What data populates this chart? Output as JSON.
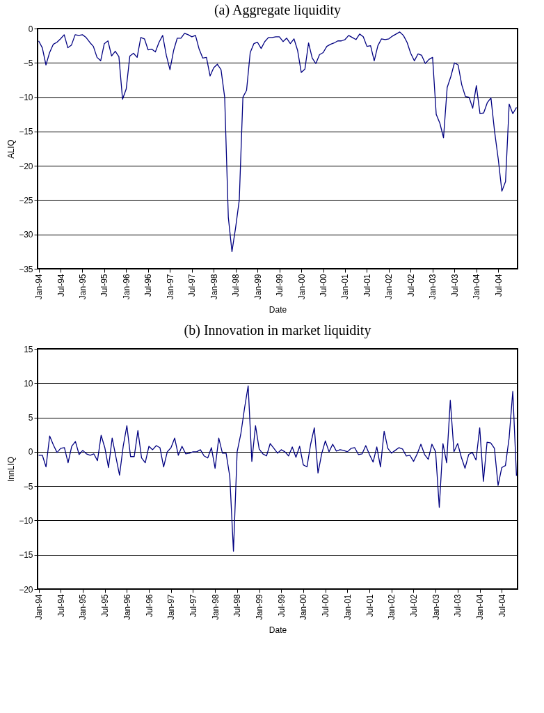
{
  "chart_data": [
    {
      "type": "line",
      "title": "(a) Aggregate liquidity",
      "xlabel": "Date",
      "ylabel": "ALIQ",
      "categories": [
        "Jan-94",
        null,
        null,
        null,
        null,
        null,
        "Jul-94",
        null,
        null,
        null,
        null,
        null,
        "Jan-95",
        null,
        null,
        null,
        null,
        null,
        "Jul-95",
        null,
        null,
        null,
        null,
        null,
        "Jan-96",
        null,
        null,
        null,
        null,
        null,
        "Jul-96",
        null,
        null,
        null,
        null,
        null,
        "Jan-97",
        null,
        null,
        null,
        null,
        null,
        "Jul-97",
        null,
        null,
        null,
        null,
        null,
        "Jan-98",
        null,
        null,
        null,
        null,
        null,
        "Jul-98",
        null,
        null,
        null,
        null,
        null,
        "Jan-99",
        null,
        null,
        null,
        null,
        null,
        "Jul-99",
        null,
        null,
        null,
        null,
        null,
        "Jan-00",
        null,
        null,
        null,
        null,
        null,
        "Jul-00",
        null,
        null,
        null,
        null,
        null,
        "Jan-01",
        null,
        null,
        null,
        null,
        null,
        "Jul-01",
        null,
        null,
        null,
        null,
        null,
        "Jan-02",
        null,
        null,
        null,
        null,
        null,
        "Jul-02",
        null,
        null,
        null,
        null,
        null,
        "Jan-03",
        null,
        null,
        null,
        null,
        null,
        "Jul-03",
        null,
        null,
        null,
        null,
        null,
        "Jan-04",
        null,
        null,
        null,
        null,
        null,
        "Jul-04",
        null,
        null,
        null,
        null,
        null
      ],
      "series": [
        {
          "color": "#000080",
          "values": [
            -1.8,
            -2.8,
            -5.3,
            -3.5,
            -2.3,
            -2.0,
            -1.5,
            -0.9,
            -2.8,
            -2.4,
            -0.9,
            -1.0,
            -0.9,
            -1.3,
            -2.0,
            -2.6,
            -4.2,
            -4.7,
            -2.2,
            -1.8,
            -4.0,
            -3.3,
            -4.1,
            -10.3,
            -8.8,
            -4.0,
            -3.6,
            -4.2,
            -1.3,
            -1.5,
            -3.1,
            -3.0,
            -3.4,
            -2.0,
            -1.0,
            -3.9,
            -6.0,
            -3.2,
            -1.4,
            -1.4,
            -0.7,
            -0.9,
            -1.2,
            -1.0,
            -3.0,
            -4.3,
            -4.2,
            -6.9,
            -5.7,
            -5.2,
            -6.0,
            -10.0,
            -27.5,
            -32.5,
            -29.0,
            -25.0,
            -10.0,
            -9.0,
            -3.5,
            -2.2,
            -2.0,
            -2.9,
            -1.9,
            -1.3,
            -1.3,
            -1.2,
            -1.2,
            -1.9,
            -1.4,
            -2.2,
            -1.5,
            -3.2,
            -6.4,
            -5.9,
            -2.1,
            -4.3,
            -5.1,
            -3.8,
            -3.5,
            -2.6,
            -2.3,
            -2.1,
            -1.8,
            -1.8,
            -1.6,
            -1.0,
            -1.3,
            -1.6,
            -0.8,
            -1.2,
            -2.6,
            -2.5,
            -4.7,
            -2.5,
            -1.5,
            -1.6,
            -1.5,
            -1.1,
            -0.8,
            -0.5,
            -1.0,
            -2.0,
            -3.6,
            -4.7,
            -3.7,
            -3.9,
            -5.1,
            -4.5,
            -4.2,
            -12.5,
            -13.8,
            -15.9,
            -8.6,
            -7.0,
            -5.0,
            -5.3,
            -8.2,
            -9.9,
            -10.0,
            -11.6,
            -8.3,
            -12.4,
            -12.3,
            -10.8,
            -10.1,
            -15.0,
            -19.0,
            -23.7,
            -22.3,
            -11.0,
            -12.4,
            -11.5
          ]
        }
      ],
      "ylim": [
        -35,
        0
      ],
      "yticks": [
        -35,
        -30,
        -25,
        -20,
        -15,
        -10,
        -5,
        0
      ],
      "grid": "y",
      "marker": "none",
      "line_style": "solid"
    },
    {
      "type": "line",
      "title": "(b) Innovation in market liquidity",
      "xlabel": "Date",
      "ylabel": "InnLIQ",
      "categories": [
        "Jan-94",
        null,
        null,
        null,
        null,
        null,
        "Jul-94",
        null,
        null,
        null,
        null,
        null,
        "Jan-95",
        null,
        null,
        null,
        null,
        null,
        "Jul-95",
        null,
        null,
        null,
        null,
        null,
        "Jan-96",
        null,
        null,
        null,
        null,
        null,
        "Jul-96",
        null,
        null,
        null,
        null,
        null,
        "Jan-97",
        null,
        null,
        null,
        null,
        null,
        "Jul-97",
        null,
        null,
        null,
        null,
        null,
        "Jan-98",
        null,
        null,
        null,
        null,
        null,
        "Jul-98",
        null,
        null,
        null,
        null,
        null,
        "Jan-99",
        null,
        null,
        null,
        null,
        null,
        "Jul-99",
        null,
        null,
        null,
        null,
        null,
        "Jan-00",
        null,
        null,
        null,
        null,
        null,
        "Jul-00",
        null,
        null,
        null,
        null,
        null,
        "Jan-01",
        null,
        null,
        null,
        null,
        null,
        "Jul-01",
        null,
        null,
        null,
        null,
        null,
        "Jan-02",
        null,
        null,
        null,
        null,
        null,
        "Jul-02",
        null,
        null,
        null,
        null,
        null,
        "Jan-03",
        null,
        null,
        null,
        null,
        null,
        "Jul-03",
        null,
        null,
        null,
        null,
        null,
        "Jan-04",
        null,
        null,
        null,
        null,
        null,
        "Jul-04",
        null,
        null,
        null,
        null
      ],
      "series": [
        {
          "color": "#000080",
          "values": [
            -0.5,
            -0.5,
            -2.2,
            2.3,
            1.0,
            -0.1,
            0.5,
            0.6,
            -1.6,
            0.8,
            1.5,
            -0.4,
            0.2,
            -0.3,
            -0.5,
            -0.3,
            -1.3,
            2.4,
            0.6,
            -2.3,
            2.0,
            -0.7,
            -3.4,
            0.8,
            3.8,
            -0.7,
            -0.7,
            3.1,
            -0.9,
            -1.6,
            0.8,
            0.3,
            0.9,
            0.6,
            -2.2,
            0.0,
            0.6,
            2.0,
            -0.5,
            0.8,
            -0.3,
            -0.2,
            0.0,
            0.0,
            0.3,
            -0.6,
            -0.9,
            0.6,
            -2.4,
            2.0,
            -0.2,
            -0.2,
            -3.6,
            -14.5,
            0.0,
            2.6,
            6.3,
            9.6,
            -1.4,
            3.8,
            0.4,
            -0.3,
            -0.6,
            1.2,
            0.5,
            -0.2,
            0.3,
            0.0,
            -0.6,
            0.7,
            -0.8,
            0.8,
            -1.9,
            -2.2,
            1.1,
            3.5,
            -3.1,
            -0.3,
            1.6,
            0.0,
            1.1,
            0.1,
            0.3,
            0.2,
            0.0,
            0.5,
            0.6,
            -0.4,
            -0.3,
            0.9,
            -0.4,
            -1.5,
            0.7,
            -2.2,
            3.0,
            0.5,
            -0.2,
            0.2,
            0.6,
            0.4,
            -0.6,
            -0.5,
            -1.4,
            -0.3,
            1.1,
            -0.4,
            -1.1,
            1.1,
            0.0,
            -8.1,
            1.2,
            -1.6,
            7.5,
            0.0,
            1.2,
            -0.8,
            -2.4,
            -0.4,
            -0.1,
            -1.2,
            3.5,
            -4.3,
            1.4,
            1.3,
            0.5,
            -4.9,
            -2.3,
            -2.0,
            2.0,
            8.8,
            -3.5
          ]
        }
      ],
      "ylim": [
        -20,
        15
      ],
      "yticks": [
        -20,
        -15,
        -10,
        -5,
        0,
        5,
        10,
        15
      ],
      "grid": "y",
      "marker": "none",
      "line_style": "solid"
    }
  ]
}
